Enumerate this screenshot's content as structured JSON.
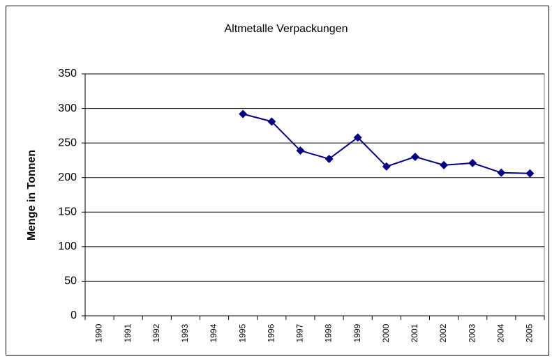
{
  "chart_data": {
    "type": "line",
    "title": "Altmetalle Verpackungen",
    "y_label": "Menge in Tonnen",
    "categories": [
      "1990",
      "1991",
      "1992",
      "1993",
      "1994",
      "1995",
      "1996",
      "1997",
      "1998",
      "1999",
      "2000",
      "2001",
      "2002",
      "2003",
      "2004",
      "2005"
    ],
    "series": [
      {
        "name": "Altmetalle Verpackungen",
        "color": "#000080",
        "values": [
          null,
          null,
          null,
          null,
          null,
          292,
          281,
          239,
          227,
          258,
          216,
          230,
          218,
          221,
          207,
          206
        ]
      }
    ],
    "ylim": [
      0,
      350
    ],
    "yticks": [
      0,
      50,
      100,
      150,
      200,
      250,
      300,
      350
    ],
    "grid": true
  }
}
